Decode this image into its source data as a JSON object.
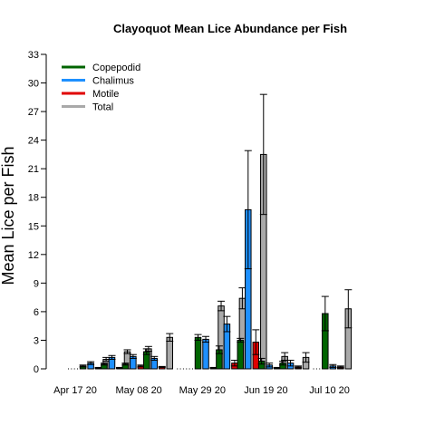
{
  "chart_data": {
    "type": "bar",
    "title": "Clayoquot Mean Lice Abundance per Fish",
    "xlabel": "",
    "ylabel": "Mean Lice per Fish",
    "ylim": [
      0,
      33
    ],
    "yticks": [
      0,
      3,
      6,
      9,
      12,
      15,
      18,
      21,
      24,
      27,
      30,
      33
    ],
    "x_tick_labels": [
      "Apr 17 20",
      "May 08 20",
      "May 29 20",
      "Jun 19 20",
      "Jul 10 20"
    ],
    "grid": false,
    "legend_position": "top-left",
    "series": [
      {
        "name": "Copepodid",
        "color": "#006400"
      },
      {
        "name": "Chalimus",
        "color": "#1E90FF"
      },
      {
        "name": "Motile",
        "color": "#E00000"
      },
      {
        "name": "Total",
        "color": "#A9A9A9"
      }
    ],
    "groups": [
      {
        "date": "2020-04-21",
        "values": [
          0.3,
          0.6,
          0.1,
          1.0
        ],
        "errors": [
          0.1,
          0.15,
          0.05,
          0.2
        ]
      },
      {
        "date": "2020-04-28",
        "values": [
          0.5,
          1.2,
          0.1,
          1.8
        ],
        "errors": [
          0.1,
          0.2,
          0.05,
          0.2
        ]
      },
      {
        "date": "2020-05-05",
        "values": [
          0.5,
          1.3,
          0.3,
          2.1
        ],
        "errors": [
          0.1,
          0.2,
          0.1,
          0.25
        ]
      },
      {
        "date": "2020-05-12",
        "values": [
          1.8,
          1.1,
          0.2,
          3.3
        ],
        "errors": [
          0.3,
          0.2,
          0.05,
          0.4
        ]
      },
      {
        "date": "2020-05-29",
        "values": [
          3.3,
          3.1,
          0.1,
          6.6
        ],
        "errors": [
          0.3,
          0.3,
          0.05,
          0.5
        ]
      },
      {
        "date": "2020-06-05",
        "values": [
          2.0,
          4.7,
          0.6,
          7.4
        ],
        "errors": [
          0.4,
          0.8,
          0.3,
          1.1
        ]
      },
      {
        "date": "2020-06-12",
        "values": [
          3.0,
          16.7,
          2.8,
          22.5
        ],
        "errors": [
          0.2,
          6.2,
          1.3,
          6.3
        ]
      },
      {
        "date": "2020-06-19",
        "values": [
          0.8,
          0.4,
          0.1,
          1.3
        ],
        "errors": [
          0.3,
          0.2,
          0.05,
          0.4
        ]
      },
      {
        "date": "2020-06-26",
        "values": [
          0.6,
          0.6,
          0.2,
          1.2
        ],
        "errors": [
          0.2,
          0.3,
          0.1,
          0.5
        ]
      },
      {
        "date": "2020-07-10",
        "values": [
          5.8,
          0.3,
          0.2,
          6.3
        ],
        "errors": [
          1.8,
          0.15,
          0.1,
          2.0
        ]
      }
    ]
  }
}
